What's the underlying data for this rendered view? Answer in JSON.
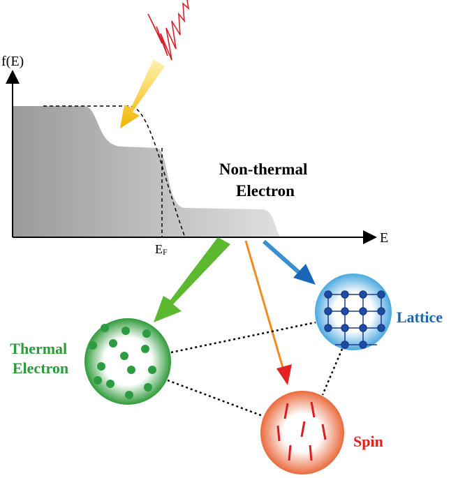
{
  "axes": {
    "y_label": "f(E)",
    "x_label": "E",
    "fermi_label": {
      "main": "E",
      "sub": "F"
    }
  },
  "nodes": [
    {
      "lines": [
        "Non-thermal",
        "Electron"
      ]
    },
    {
      "lines": [
        "Thermal",
        "Electron"
      ]
    },
    {
      "lines": [
        "Lattice"
      ]
    },
    {
      "lines": [
        "Spin"
      ]
    }
  ]
}
